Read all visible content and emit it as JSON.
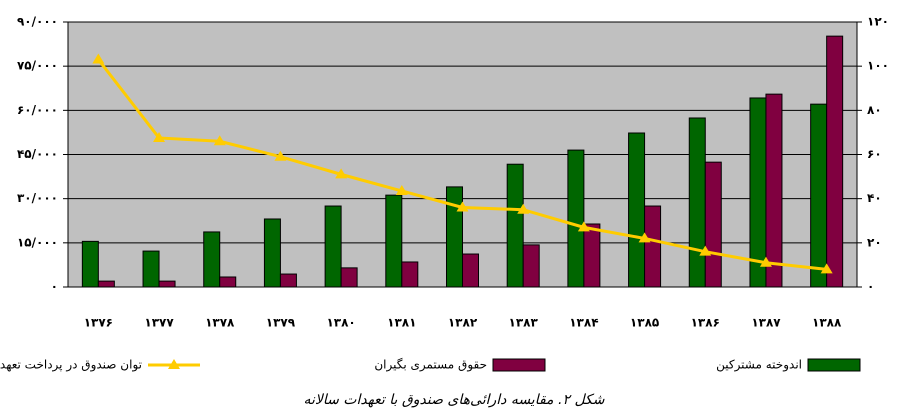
{
  "chart_data": {
    "type": "bar",
    "caption": "شکل ۲. مقایسه دارائی‌های صندوق با تعهدات سالانه",
    "categories": [
      "۱۳۷۶",
      "۱۳۷۷",
      "۱۳۷۸",
      "۱۳۷۹",
      "۱۳۸۰",
      "۱۳۸۱",
      "۱۳۸۲",
      "۱۳۸۳",
      "۱۳۸۴",
      "۱۳۸۵",
      "۱۳۸۶",
      "۱۳۸۷",
      "۱۳۸۸"
    ],
    "series": [
      {
        "name": "اندوخته مشترکین",
        "color": "#006600",
        "type": "bar",
        "values": [
          15500,
          12200,
          18700,
          23100,
          27500,
          31200,
          34000,
          41700,
          46500,
          52300,
          57400,
          64200,
          62100
        ]
      },
      {
        "name": "حقوق مستمری بگیران",
        "color": "#800040",
        "type": "bar",
        "values": [
          2000,
          2000,
          3400,
          4400,
          6500,
          8500,
          11200,
          14300,
          21400,
          27500,
          42400,
          65500,
          85200
        ]
      },
      {
        "name": "توان صندوق در پرداخت تعهدات (به ماه)",
        "color": "#ffcc00",
        "type": "line",
        "axis": "y2",
        "values": [
          103,
          67.5,
          66,
          59,
          51,
          43.5,
          36,
          35,
          27,
          22,
          16,
          11,
          8
        ]
      }
    ],
    "ylim": [
      0,
      90000
    ],
    "yticks": [
      {
        "value": 0,
        "label": "۰"
      },
      {
        "value": 15000,
        "label": "۱۵/۰۰۰"
      },
      {
        "value": 30000,
        "label": "۳۰/۰۰۰"
      },
      {
        "value": 45000,
        "label": "۴۵/۰۰۰"
      },
      {
        "value": 60000,
        "label": "۶۰/۰۰۰"
      },
      {
        "value": 75000,
        "label": "۷۵/۰۰۰"
      },
      {
        "value": 90000,
        "label": "۹۰/۰۰۰"
      }
    ],
    "y2lim": [
      0,
      120
    ],
    "y2ticks": [
      {
        "value": 0,
        "label": "۰"
      },
      {
        "value": 20,
        "label": "۲۰"
      },
      {
        "value": 40,
        "label": "۴۰"
      },
      {
        "value": 60,
        "label": "۶۰"
      },
      {
        "value": 80,
        "label": "۸۰"
      },
      {
        "value": 100,
        "label": "۱۰۰"
      },
      {
        "value": 120,
        "label": "۱۲۰"
      }
    ],
    "grid": true
  }
}
